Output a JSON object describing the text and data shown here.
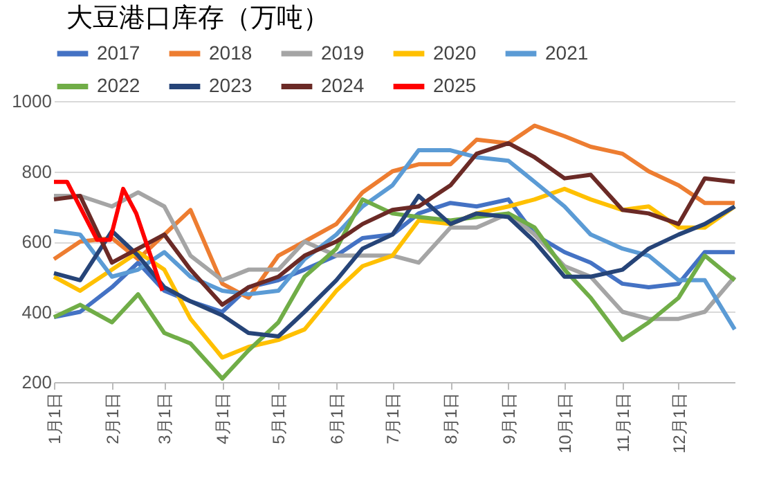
{
  "chart_data": {
    "type": "line",
    "title": "大豆港口库存（万吨）",
    "x": [
      "--01-01",
      "--01-15",
      "--02-01",
      "--02-15",
      "--03-01",
      "--03-15",
      "--04-01",
      "--04-15",
      "--05-01",
      "--05-15",
      "--06-01",
      "--06-15",
      "--07-01",
      "--07-15",
      "--08-01",
      "--08-15",
      "--09-01",
      "--09-15",
      "--10-01",
      "--10-15",
      "--11-01",
      "--11-15",
      "--12-01",
      "--12-15",
      "--12-31"
    ],
    "series": [
      {
        "name": "2017",
        "color": "#4472c4",
        "values": [
          385,
          400,
          470,
          540,
          460,
          430,
          400,
          470,
          490,
          520,
          560,
          610,
          620,
          680,
          710,
          700,
          720,
          620,
          570,
          540,
          480,
          470,
          480,
          570,
          570
        ]
      },
      {
        "name": "2018",
        "color": "#ed7d31",
        "values": [
          550,
          600,
          610,
          550,
          620,
          690,
          480,
          440,
          560,
          600,
          650,
          740,
          800,
          820,
          820,
          890,
          880,
          930,
          900,
          870,
          850,
          800,
          760,
          710,
          710
        ]
      },
      {
        "name": "2019",
        "color": "#a5a5a5",
        "values": [
          730,
          730,
          700,
          740,
          700,
          560,
          490,
          520,
          520,
          600,
          560,
          560,
          560,
          540,
          640,
          640,
          680,
          620,
          530,
          500,
          400,
          380,
          380,
          400,
          500
        ]
      },
      {
        "name": "2020",
        "color": "#ffc000",
        "values": [
          500,
          460,
          520,
          570,
          520,
          380,
          270,
          300,
          320,
          350,
          460,
          530,
          560,
          660,
          650,
          680,
          700,
          720,
          750,
          720,
          690,
          700,
          640,
          640,
          700
        ]
      },
      {
        "name": "2021",
        "color": "#5b9bd5",
        "values": [
          630,
          620,
          500,
          520,
          570,
          500,
          460,
          450,
          460,
          550,
          620,
          700,
          760,
          860,
          860,
          840,
          830,
          770,
          700,
          620,
          580,
          560,
          490,
          490,
          350
        ]
      },
      {
        "name": "2022",
        "color": "#70ad47",
        "values": [
          385,
          420,
          370,
          450,
          340,
          310,
          210,
          290,
          370,
          500,
          580,
          720,
          680,
          670,
          660,
          670,
          680,
          640,
          520,
          440,
          320,
          370,
          440,
          560,
          490
        ]
      },
      {
        "name": "2023",
        "color": "#264478",
        "values": [
          510,
          490,
          630,
          560,
          470,
          430,
          390,
          340,
          330,
          400,
          490,
          580,
          620,
          730,
          650,
          680,
          670,
          600,
          500,
          500,
          520,
          580,
          620,
          650,
          700
        ]
      },
      {
        "name": "2024",
        "color": "#6b2a26",
        "values": [
          720,
          730,
          540,
          580,
          620,
          520,
          420,
          470,
          500,
          560,
          600,
          650,
          690,
          700,
          760,
          850,
          880,
          840,
          780,
          790,
          690,
          680,
          650,
          780,
          770
        ]
      },
      {
        "name": "2025",
        "color": "#ff0000",
        "x": [
          "--01-01",
          "--01-08",
          "--01-24",
          "--01-31",
          "--02-07",
          "--02-14",
          "--02-21",
          "--02-28"
        ],
        "values": [
          770,
          770,
          605,
          605,
          750,
          680,
          570,
          460
        ]
      }
    ],
    "xlim": [
      "--01-01",
      "--12-31"
    ],
    "xticks": [
      {
        "value": "--01-01",
        "label": "1月1日"
      },
      {
        "value": "--02-01",
        "label": "2月1日"
      },
      {
        "value": "--03-01",
        "label": "3月1日"
      },
      {
        "value": "--04-01",
        "label": "4月1日"
      },
      {
        "value": "--05-01",
        "label": "5月1日"
      },
      {
        "value": "--06-01",
        "label": "6月1日"
      },
      {
        "value": "--07-01",
        "label": "7月1日"
      },
      {
        "value": "--08-01",
        "label": "8月1日"
      },
      {
        "value": "--09-01",
        "label": "9月1日"
      },
      {
        "value": "--10-01",
        "label": "10月1日"
      },
      {
        "value": "--11-01",
        "label": "11月1日"
      },
      {
        "value": "--12-01",
        "label": "12月1日"
      }
    ],
    "ylim": [
      200,
      1000
    ],
    "yticks": [
      200,
      400,
      600,
      800,
      1000
    ],
    "grid": "y",
    "legend": "top",
    "marker": "none",
    "line_style": "solid"
  }
}
